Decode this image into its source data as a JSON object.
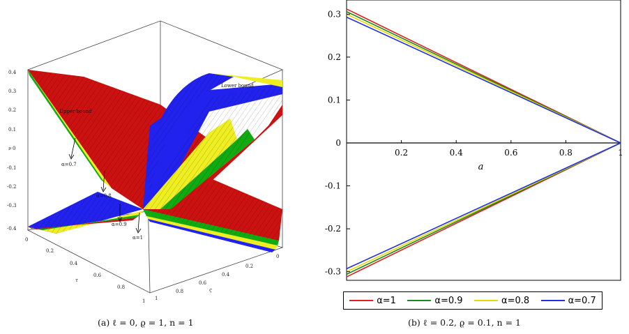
{
  "chart_data": [
    {
      "type": "surface3d",
      "panel_caption": "(a) ℓ = 0, ϱ = 1, n = 1",
      "axes": {
        "x": {
          "label": "τ",
          "ticks": [
            "0",
            "0.2",
            "0.4",
            "0.6",
            "0.8",
            "1"
          ]
        },
        "y": {
          "label": "ς",
          "ticks": [
            "1",
            "0.8",
            "0.6",
            "0.4",
            "0.2",
            "0"
          ]
        },
        "z": {
          "label": "ν",
          "ticks": [
            "0.4",
            "0.3",
            "0.2",
            "0.1",
            "0",
            "-0.1",
            "-0.2",
            "-0.3",
            "-0.4"
          ],
          "range": [
            -0.42,
            0.42
          ]
        }
      },
      "surfaces": [
        {
          "alpha": "1",
          "color": "#cc1111"
        },
        {
          "alpha": "0.9",
          "color": "#11aa11"
        },
        {
          "alpha": "0.8",
          "color": "#eeee22"
        },
        {
          "alpha": "0.7",
          "color": "#2222ee"
        }
      ],
      "annotations": [
        "Upper bound",
        "Lower bound",
        "α=0.7",
        "α=0.8",
        "α=0.9",
        "α=1"
      ]
    },
    {
      "type": "line",
      "panel_caption": "(b) ℓ = 0.2, ϱ = 0.1, n = 1",
      "xlabel": "a",
      "xlim": [
        0,
        1
      ],
      "ylim": [
        -0.32,
        0.32
      ],
      "x_ticks": [
        0.2,
        0.4,
        0.6,
        0.8,
        1
      ],
      "y_ticks": [
        0.3,
        0.2,
        0.1,
        0,
        -0.1,
        -0.2,
        -0.3
      ],
      "legend_position": "bottom",
      "series": [
        {
          "name": "α=1",
          "color": "#e02020",
          "upper": [
            [
              0,
              0.312
            ],
            [
              1,
              0
            ]
          ],
          "lower": [
            [
              0,
              -0.312
            ],
            [
              1,
              0
            ]
          ]
        },
        {
          "name": "α=0.9",
          "color": "#1a8a1a",
          "upper": [
            [
              0,
              0.306
            ],
            [
              1,
              0
            ]
          ],
          "lower": [
            [
              0,
              -0.306
            ],
            [
              1,
              0
            ]
          ]
        },
        {
          "name": "α=0.8",
          "color": "#e8d800",
          "upper": [
            [
              0,
              0.3
            ],
            [
              1,
              0
            ]
          ],
          "lower": [
            [
              0,
              -0.3
            ],
            [
              1,
              0
            ]
          ]
        },
        {
          "name": "α=0.7",
          "color": "#2030e0",
          "upper": [
            [
              0,
              0.293
            ],
            [
              1,
              0
            ]
          ],
          "lower": [
            [
              0,
              -0.293
            ],
            [
              1,
              0
            ]
          ]
        }
      ]
    }
  ]
}
